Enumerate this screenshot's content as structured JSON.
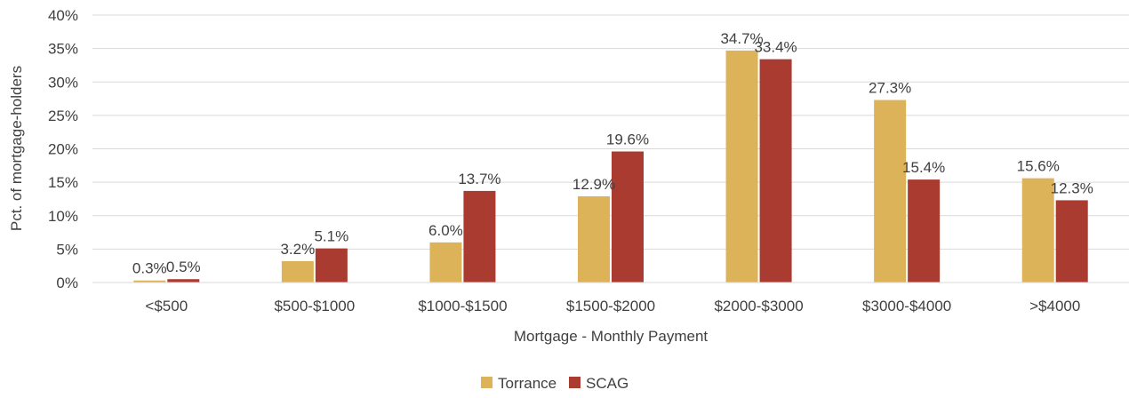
{
  "chart_data": {
    "type": "bar",
    "title": "",
    "xlabel": "Mortgage - Monthly Payment",
    "ylabel": "Pct. of mortgage-holders",
    "categories": [
      "<$500",
      "$500-$1000",
      "$1000-$1500",
      "$1500-$2000",
      "$2000-$3000",
      "$3000-$4000",
      ">$4000"
    ],
    "series": [
      {
        "name": "Torrance",
        "color": "#DDB35A",
        "values": [
          0.3,
          3.2,
          6.0,
          12.9,
          34.7,
          27.3,
          15.6
        ],
        "labels": [
          "0.3%",
          "3.2%",
          "6.0%",
          "12.9%",
          "34.7%",
          "27.3%",
          "15.6%"
        ]
      },
      {
        "name": "SCAG",
        "color": "#A93B30",
        "values": [
          0.5,
          5.1,
          13.7,
          19.6,
          33.4,
          15.4,
          12.3
        ],
        "labels": [
          "0.5%",
          "5.1%",
          "13.7%",
          "19.6%",
          "33.4%",
          "15.4%",
          "12.3%"
        ]
      }
    ],
    "ylim": [
      0,
      40
    ],
    "yticks": [
      0,
      5,
      10,
      15,
      20,
      25,
      30,
      35,
      40
    ],
    "ytick_labels": [
      "0%",
      "5%",
      "10%",
      "15%",
      "20%",
      "25%",
      "30%",
      "35%",
      "40%"
    ],
    "grid": true,
    "legend_position": "bottom-center"
  }
}
